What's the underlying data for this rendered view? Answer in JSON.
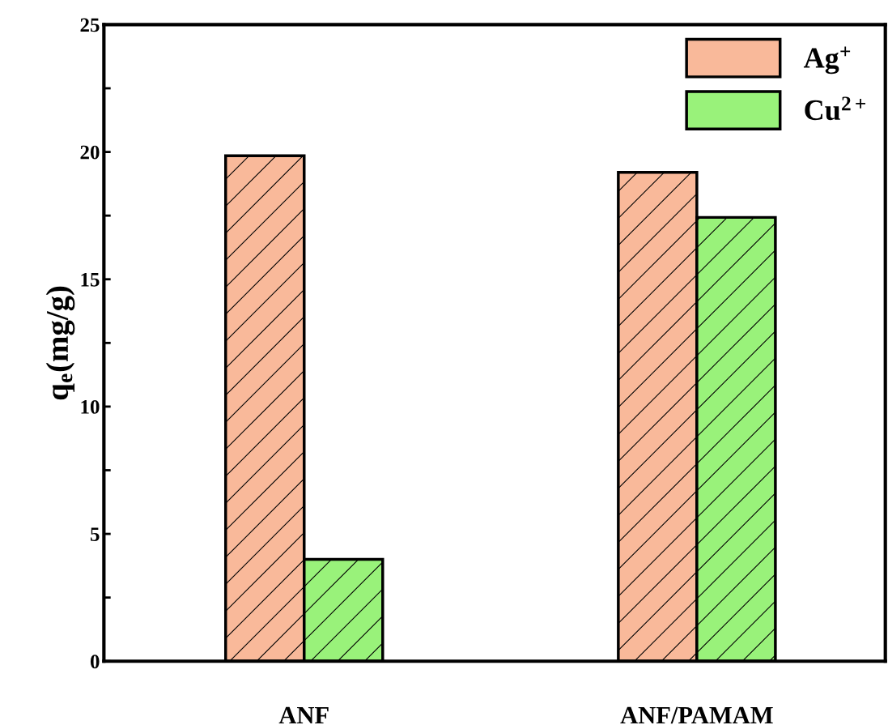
{
  "chart_data": {
    "type": "bar",
    "ylabel": "q$_{e}$(mg/g)",
    "categories": [
      "ANF",
      "ANF/PAMAM"
    ],
    "series": [
      {
        "name": "Ag$^{+}$",
        "color": "#f9b99a",
        "values": [
          19.85,
          19.2
        ]
      },
      {
        "name": "Cu$^{2+}$",
        "color": "#99f27a",
        "values": [
          4.0,
          17.43
        ]
      }
    ],
    "ylim": [
      0,
      25
    ],
    "yticks": [
      0,
      {
        "value": 2.5,
        "label": null
      },
      5,
      {
        "value": 7.5,
        "label": null
      },
      10,
      {
        "value": 12.5,
        "label": null
      },
      15,
      {
        "value": 17.5,
        "label": null
      },
      20,
      {
        "value": 22.5,
        "label": null
      },
      25
    ],
    "grid": false,
    "legend": "top right"
  }
}
